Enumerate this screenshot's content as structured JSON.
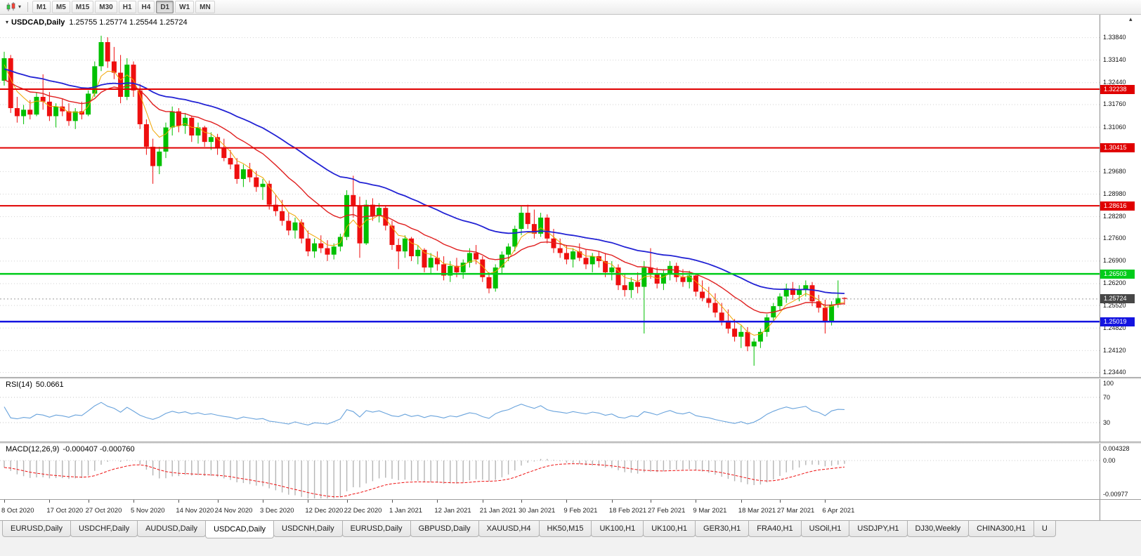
{
  "icons": {
    "dropdown_caret": "▾",
    "collapse_indicator": "▾",
    "scale_arrow": "▴"
  },
  "toolbar": {
    "timeframes": [
      {
        "label": "M1",
        "active": false
      },
      {
        "label": "M5",
        "active": false
      },
      {
        "label": "M15",
        "active": false
      },
      {
        "label": "M30",
        "active": false
      },
      {
        "label": "H1",
        "active": false
      },
      {
        "label": "H4",
        "active": false
      },
      {
        "label": "D1",
        "active": true
      },
      {
        "label": "W1",
        "active": false
      },
      {
        "label": "MN",
        "active": false
      }
    ]
  },
  "chart": {
    "symbol_title": "USDCAD,Daily",
    "ohlc_text": "1.25755 1.25774 1.25544 1.25724"
  },
  "rsi_panel": {
    "label": "RSI(14)",
    "value": "50.0661"
  },
  "macd_panel": {
    "label": "MACD(12,26,9)",
    "values": "-0.000407 -0.000760"
  },
  "tabs": {
    "items": [
      {
        "label": "EURUSD,Daily",
        "active": false
      },
      {
        "label": "USDCHF,Daily",
        "active": false
      },
      {
        "label": "AUDUSD,Daily",
        "active": false
      },
      {
        "label": "USDCAD,Daily",
        "active": true
      },
      {
        "label": "USDCNH,Daily",
        "active": false
      },
      {
        "label": "EURUSD,Daily",
        "active": false
      },
      {
        "label": "GBPUSD,Daily",
        "active": false
      },
      {
        "label": "XAUUSD,H4",
        "active": false
      },
      {
        "label": "HK50,M15",
        "active": false
      },
      {
        "label": "UK100,H1",
        "active": false
      },
      {
        "label": "UK100,H1",
        "active": false
      },
      {
        "label": "GER30,H1",
        "active": false
      },
      {
        "label": "FRA40,H1",
        "active": false
      },
      {
        "label": "USOil,H1",
        "active": false
      },
      {
        "label": "USDJPY,H1",
        "active": false
      },
      {
        "label": "DJ30,Weekly",
        "active": false
      },
      {
        "label": "CHINA300,H1",
        "active": false
      },
      {
        "label": "U",
        "active": false
      }
    ]
  },
  "chart_data": {
    "type": "candlestick",
    "symbol": "USDCAD",
    "timeframe": "Daily",
    "y_axis": {
      "top": 1.3455,
      "bottom": 1.233
    },
    "colors": {
      "up": "#00c000",
      "down": "#ee0f0f"
    },
    "price_axis": [
      "1.33840",
      "1.33140",
      "1.32440",
      "1.31760",
      "1.31060",
      "1.29680",
      "1.28980",
      "1.28280",
      "1.27600",
      "1.26900",
      "1.26200",
      "1.25520",
      "1.24820",
      "1.24120",
      "1.23440"
    ],
    "hlines": [
      {
        "price": 1.32238,
        "label": "1.32238",
        "color": "#e00000",
        "width": 2
      },
      {
        "price": 1.30415,
        "label": "1.30415",
        "color": "#e00000",
        "width": 2
      },
      {
        "price": 1.28616,
        "label": "1.28616",
        "color": "#e00000",
        "width": 2
      },
      {
        "price": 1.26503,
        "label": "1.26503",
        "color": "#00cc1a",
        "width": 2.5
      },
      {
        "price": 1.25019,
        "label": "1.25019",
        "color": "#1414e0",
        "width": 2.5
      }
    ],
    "current_price": {
      "price": 1.25724,
      "label": "1.25724",
      "badge_color": "#474747"
    },
    "date_labels": [
      {
        "bar": 0,
        "text": "8 Oct 2020"
      },
      {
        "bar": 7,
        "text": "17 Oct 2020"
      },
      {
        "bar": 13,
        "text": "27 Oct 2020"
      },
      {
        "bar": 20,
        "text": "5 Nov 2020"
      },
      {
        "bar": 27,
        "text": "14 Nov 2020"
      },
      {
        "bar": 33,
        "text": "24 Nov 2020"
      },
      {
        "bar": 40,
        "text": "3 Dec 2020"
      },
      {
        "bar": 47,
        "text": "12 Dec 2020"
      },
      {
        "bar": 53,
        "text": "22 Dec 2020"
      },
      {
        "bar": 60,
        "text": "1 Jan 2021"
      },
      {
        "bar": 67,
        "text": "12 Jan 2021"
      },
      {
        "bar": 74,
        "text": "21 Jan 2021"
      },
      {
        "bar": 80,
        "text": "30 Jan 2021"
      },
      {
        "bar": 87,
        "text": "9 Feb 2021"
      },
      {
        "bar": 94,
        "text": "18 Feb 2021"
      },
      {
        "bar": 100,
        "text": "27 Feb 2021"
      },
      {
        "bar": 107,
        "text": "9 Mar 2021"
      },
      {
        "bar": 114,
        "text": "18 Mar 2021"
      },
      {
        "bar": 120,
        "text": "27 Mar 2021"
      },
      {
        "bar": 127,
        "text": "6 Apr 2021"
      }
    ],
    "indicators": {
      "mas": [
        {
          "name": "ma-fast",
          "period": 5,
          "seed": 1.329,
          "color": "#f0a500",
          "width": 1
        },
        {
          "name": "ma-medium",
          "period": 17,
          "seed": 1.3245,
          "color": "#e02020",
          "width": 1.4
        },
        {
          "name": "ma-slow",
          "period": 40,
          "seed": 1.3285,
          "color": "#2222d4",
          "width": 1.8
        }
      ],
      "rsi": {
        "period": 14,
        "color": "#69a3dc",
        "levels": [
          70,
          30
        ],
        "axis_labels": [
          "100",
          "70",
          "30"
        ]
      },
      "macd": {
        "fast": 12,
        "slow": 26,
        "signal": 9,
        "seed_fast": 1.329,
        "seed_slow": 1.3312,
        "hist_color": "#b5b5b5",
        "signal_color": "#ee1111",
        "axis_labels": [
          "0.004328",
          "0.00",
          "-0.00977"
        ]
      }
    },
    "candles": [
      [
        1.325,
        1.334,
        1.3235,
        1.332
      ],
      [
        1.332,
        1.333,
        1.315,
        1.3165
      ],
      [
        1.3165,
        1.32,
        1.312,
        1.314
      ],
      [
        1.314,
        1.3175,
        1.3115,
        1.316
      ],
      [
        1.316,
        1.319,
        1.313,
        1.3145
      ],
      [
        1.3145,
        1.3215,
        1.314,
        1.32
      ],
      [
        1.32,
        1.327,
        1.316,
        1.3185
      ],
      [
        1.3185,
        1.3215,
        1.3125,
        1.314
      ],
      [
        1.314,
        1.318,
        1.3105,
        1.317
      ],
      [
        1.317,
        1.3195,
        1.314,
        1.3155
      ],
      [
        1.3155,
        1.318,
        1.311,
        1.3125
      ],
      [
        1.3125,
        1.3165,
        1.31,
        1.3155
      ],
      [
        1.3155,
        1.3185,
        1.313,
        1.3145
      ],
      [
        1.3145,
        1.322,
        1.314,
        1.321
      ],
      [
        1.321,
        1.331,
        1.32,
        1.3295
      ],
      [
        1.3295,
        1.339,
        1.328,
        1.337
      ],
      [
        1.337,
        1.3385,
        1.329,
        1.331
      ],
      [
        1.331,
        1.3355,
        1.3255,
        1.3275
      ],
      [
        1.3275,
        1.333,
        1.318,
        1.32
      ],
      [
        1.32,
        1.332,
        1.319,
        1.33
      ],
      [
        1.33,
        1.331,
        1.32,
        1.322
      ],
      [
        1.322,
        1.324,
        1.31,
        1.3115
      ],
      [
        1.3115,
        1.313,
        1.302,
        1.3045
      ],
      [
        1.3045,
        1.307,
        1.293,
        1.2985
      ],
      [
        1.2985,
        1.3045,
        1.296,
        1.303
      ],
      [
        1.303,
        1.312,
        1.301,
        1.3105
      ],
      [
        1.3105,
        1.317,
        1.308,
        1.3155
      ],
      [
        1.3155,
        1.3165,
        1.309,
        1.311
      ],
      [
        1.311,
        1.315,
        1.3085,
        1.3135
      ],
      [
        1.3135,
        1.314,
        1.306,
        1.308
      ],
      [
        1.308,
        1.312,
        1.3055,
        1.3105
      ],
      [
        1.3105,
        1.311,
        1.3045,
        1.306
      ],
      [
        1.306,
        1.309,
        1.3035,
        1.3075
      ],
      [
        1.3075,
        1.3085,
        1.302,
        1.304
      ],
      [
        1.304,
        1.307,
        1.3,
        1.301
      ],
      [
        1.301,
        1.3035,
        1.2975,
        1.299
      ],
      [
        1.299,
        1.301,
        1.293,
        1.2945
      ],
      [
        1.2945,
        1.299,
        1.292,
        1.2975
      ],
      [
        1.2975,
        1.2995,
        1.2935,
        1.295
      ],
      [
        1.295,
        1.297,
        1.2905,
        1.292
      ],
      [
        1.292,
        1.2945,
        1.288,
        1.293
      ],
      [
        1.293,
        1.294,
        1.285,
        1.2865
      ],
      [
        1.2865,
        1.2895,
        1.283,
        1.2845
      ],
      [
        1.2845,
        1.288,
        1.28,
        1.2815
      ],
      [
        1.2815,
        1.284,
        1.277,
        1.2785
      ],
      [
        1.2785,
        1.2825,
        1.276,
        1.281
      ],
      [
        1.281,
        1.282,
        1.2745,
        1.276
      ],
      [
        1.276,
        1.2785,
        1.2705,
        1.272
      ],
      [
        1.272,
        1.276,
        1.27,
        1.2745
      ],
      [
        1.2745,
        1.277,
        1.2715,
        1.273
      ],
      [
        1.273,
        1.2755,
        1.269,
        1.271
      ],
      [
        1.271,
        1.2745,
        1.2695,
        1.2735
      ],
      [
        1.2735,
        1.2775,
        1.272,
        1.2765
      ],
      [
        1.2765,
        1.291,
        1.2755,
        1.2895
      ],
      [
        1.2895,
        1.2955,
        1.2825,
        1.286
      ],
      [
        1.286,
        1.289,
        1.27,
        1.2745
      ],
      [
        1.2745,
        1.288,
        1.274,
        1.2865
      ],
      [
        1.2865,
        1.2885,
        1.2815,
        1.283
      ],
      [
        1.283,
        1.287,
        1.281,
        1.2855
      ],
      [
        1.2855,
        1.286,
        1.2785,
        1.28
      ],
      [
        1.28,
        1.2815,
        1.2725,
        1.274
      ],
      [
        1.274,
        1.276,
        1.2665,
        1.272
      ],
      [
        1.272,
        1.277,
        1.27,
        1.276
      ],
      [
        1.276,
        1.2765,
        1.269,
        1.2705
      ],
      [
        1.2705,
        1.274,
        1.268,
        1.2725
      ],
      [
        1.2725,
        1.273,
        1.2655,
        1.267
      ],
      [
        1.267,
        1.2715,
        1.265,
        1.27
      ],
      [
        1.27,
        1.272,
        1.266,
        1.268
      ],
      [
        1.268,
        1.2705,
        1.263,
        1.2645
      ],
      [
        1.2645,
        1.269,
        1.2625,
        1.2675
      ],
      [
        1.2675,
        1.27,
        1.264,
        1.2655
      ],
      [
        1.2655,
        1.2695,
        1.2635,
        1.2685
      ],
      [
        1.2685,
        1.273,
        1.267,
        1.2715
      ],
      [
        1.2715,
        1.274,
        1.268,
        1.2695
      ],
      [
        1.2695,
        1.2705,
        1.2625,
        1.264
      ],
      [
        1.264,
        1.2655,
        1.259,
        1.2605
      ],
      [
        1.2605,
        1.268,
        1.2595,
        1.267
      ],
      [
        1.267,
        1.272,
        1.265,
        1.271
      ],
      [
        1.271,
        1.2745,
        1.269,
        1.2735
      ],
      [
        1.2735,
        1.28,
        1.272,
        1.279
      ],
      [
        1.279,
        1.286,
        1.277,
        1.284
      ],
      [
        1.284,
        1.2865,
        1.279,
        1.2805
      ],
      [
        1.2805,
        1.285,
        1.276,
        1.2775
      ],
      [
        1.2775,
        1.284,
        1.2765,
        1.2825
      ],
      [
        1.2825,
        1.2835,
        1.2745,
        1.276
      ],
      [
        1.276,
        1.279,
        1.2715,
        1.273
      ],
      [
        1.273,
        1.276,
        1.27,
        1.2715
      ],
      [
        1.2715,
        1.274,
        1.268,
        1.2695
      ],
      [
        1.2695,
        1.273,
        1.267,
        1.272
      ],
      [
        1.272,
        1.2745,
        1.269,
        1.27
      ],
      [
        1.27,
        1.2725,
        1.2665,
        1.268
      ],
      [
        1.268,
        1.2715,
        1.2655,
        1.2705
      ],
      [
        1.2705,
        1.272,
        1.267,
        1.269
      ],
      [
        1.269,
        1.2715,
        1.264,
        1.2655
      ],
      [
        1.2655,
        1.269,
        1.263,
        1.267
      ],
      [
        1.267,
        1.268,
        1.26,
        1.2615
      ],
      [
        1.2615,
        1.265,
        1.258,
        1.26
      ],
      [
        1.26,
        1.264,
        1.2575,
        1.2625
      ],
      [
        1.2625,
        1.2655,
        1.259,
        1.261
      ],
      [
        1.261,
        1.269,
        1.2465,
        1.267
      ],
      [
        1.267,
        1.273,
        1.2635,
        1.265
      ],
      [
        1.265,
        1.267,
        1.2605,
        1.262
      ],
      [
        1.262,
        1.2665,
        1.26,
        1.265
      ],
      [
        1.265,
        1.269,
        1.263,
        1.2675
      ],
      [
        1.2675,
        1.2685,
        1.2625,
        1.264
      ],
      [
        1.264,
        1.2665,
        1.261,
        1.2625
      ],
      [
        1.2625,
        1.266,
        1.2605,
        1.2645
      ],
      [
        1.2645,
        1.265,
        1.258,
        1.2595
      ],
      [
        1.2595,
        1.263,
        1.2565,
        1.2575
      ],
      [
        1.2575,
        1.261,
        1.2545,
        1.256
      ],
      [
        1.256,
        1.259,
        1.2515,
        1.253
      ],
      [
        1.253,
        1.256,
        1.249,
        1.2505
      ],
      [
        1.2505,
        1.254,
        1.2465,
        1.248
      ],
      [
        1.248,
        1.251,
        1.244,
        1.2455
      ],
      [
        1.2455,
        1.249,
        1.242,
        1.247
      ],
      [
        1.247,
        1.2485,
        1.241,
        1.2425
      ],
      [
        1.2425,
        1.245,
        1.2365,
        1.244
      ],
      [
        1.244,
        1.248,
        1.242,
        1.247
      ],
      [
        1.247,
        1.2525,
        1.2455,
        1.2515
      ],
      [
        1.2515,
        1.256,
        1.25,
        1.255
      ],
      [
        1.255,
        1.259,
        1.2535,
        1.258
      ],
      [
        1.258,
        1.262,
        1.256,
        1.2605
      ],
      [
        1.2605,
        1.2625,
        1.257,
        1.2585
      ],
      [
        1.2585,
        1.2615,
        1.2565,
        1.26
      ],
      [
        1.26,
        1.263,
        1.258,
        1.2615
      ],
      [
        1.2615,
        1.2625,
        1.255,
        1.2565
      ],
      [
        1.2565,
        1.2585,
        1.253,
        1.2545
      ],
      [
        1.2545,
        1.257,
        1.2465,
        1.25
      ],
      [
        1.25,
        1.2565,
        1.249,
        1.2555
      ],
      [
        1.2555,
        1.263,
        1.2545,
        1.2575
      ],
      [
        1.25755,
        1.25774,
        1.25544,
        1.25724
      ]
    ]
  }
}
